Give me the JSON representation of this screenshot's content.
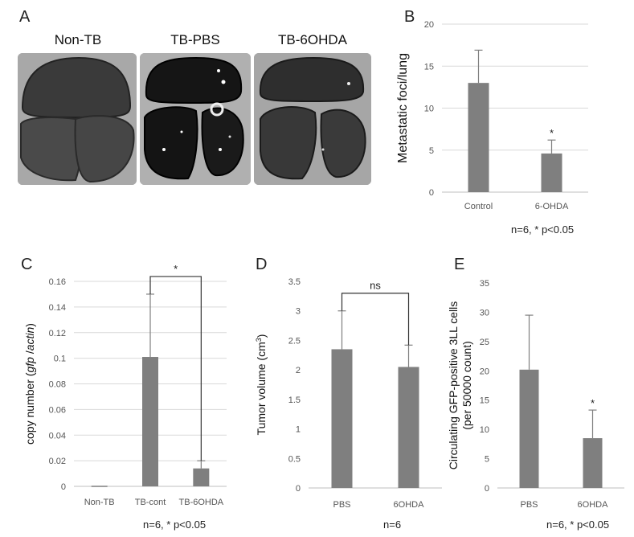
{
  "panel_a": {
    "letter": "A",
    "labels": [
      "Non-TB",
      "TB-PBS",
      "TB-6OHDA"
    ]
  },
  "colors": {
    "bar": "#7f7f7f",
    "grid": "#d9d9d9",
    "axis": "#bfbfbf",
    "error": "#7f7f7f",
    "bracket": "#333333"
  },
  "chart_data": [
    {
      "id": "B",
      "letter": "B",
      "type": "bar",
      "categories": [
        "Control",
        "6-OHDA"
      ],
      "values": [
        13.0,
        4.6
      ],
      "errors": [
        3.9,
        1.6
      ],
      "ylabel": "Metastatic foci/lung",
      "ylim": [
        0,
        20
      ],
      "yticks": [
        "0",
        "5",
        "10",
        "15",
        "20"
      ],
      "grid": true,
      "annotations": [
        {
          "category": 1,
          "text": "*"
        }
      ],
      "note": "n=6, * p<0.05"
    },
    {
      "id": "C",
      "letter": "C",
      "type": "bar",
      "categories": [
        "Non-TB",
        "TB-cont",
        "TB-6OHDA"
      ],
      "values": [
        0.0,
        0.101,
        0.014
      ],
      "errors": [
        0.0,
        0.049,
        0.006
      ],
      "ylabel_parts": [
        "copy number (",
        "gfp",
        " /",
        "actin",
        ")"
      ],
      "ylim": [
        0,
        0.16
      ],
      "yticks": [
        "0",
        "0.02",
        "0.04",
        "0.06",
        "0.08",
        "0.1",
        "0.12",
        "0.14",
        "0.16"
      ],
      "grid": true,
      "bracket": {
        "from": 1,
        "to": 2,
        "text": "*"
      },
      "note": "n=6, * p<0.05"
    },
    {
      "id": "D",
      "letter": "D",
      "type": "bar",
      "categories": [
        "PBS",
        "6OHDA"
      ],
      "values": [
        2.35,
        2.05
      ],
      "errors": [
        0.65,
        0.37
      ],
      "ylabel_parts": [
        "Tumor volume (cm",
        "3",
        ")"
      ],
      "ylim": [
        0,
        3.5
      ],
      "yticks": [
        "0",
        "0.5",
        "1",
        "1.5",
        "2",
        "2.5",
        "3",
        "3.5"
      ],
      "grid": false,
      "bracket": {
        "from": 0,
        "to": 1,
        "text": "ns"
      },
      "note": "n=6"
    },
    {
      "id": "E",
      "letter": "E",
      "type": "bar",
      "categories": [
        "PBS",
        "6OHDA"
      ],
      "values": [
        20.2,
        8.5
      ],
      "errors": [
        9.3,
        4.8
      ],
      "ylabel_lines": [
        "Circulating GFP-positive 3LL cells",
        "(per 50000 count)"
      ],
      "ylim": [
        0,
        35
      ],
      "yticks": [
        "0",
        "5",
        "10",
        "15",
        "20",
        "25",
        "30",
        "35"
      ],
      "grid": false,
      "annotations": [
        {
          "category": 1,
          "text": "*"
        }
      ],
      "note": "n=6, * p<0.05"
    }
  ]
}
